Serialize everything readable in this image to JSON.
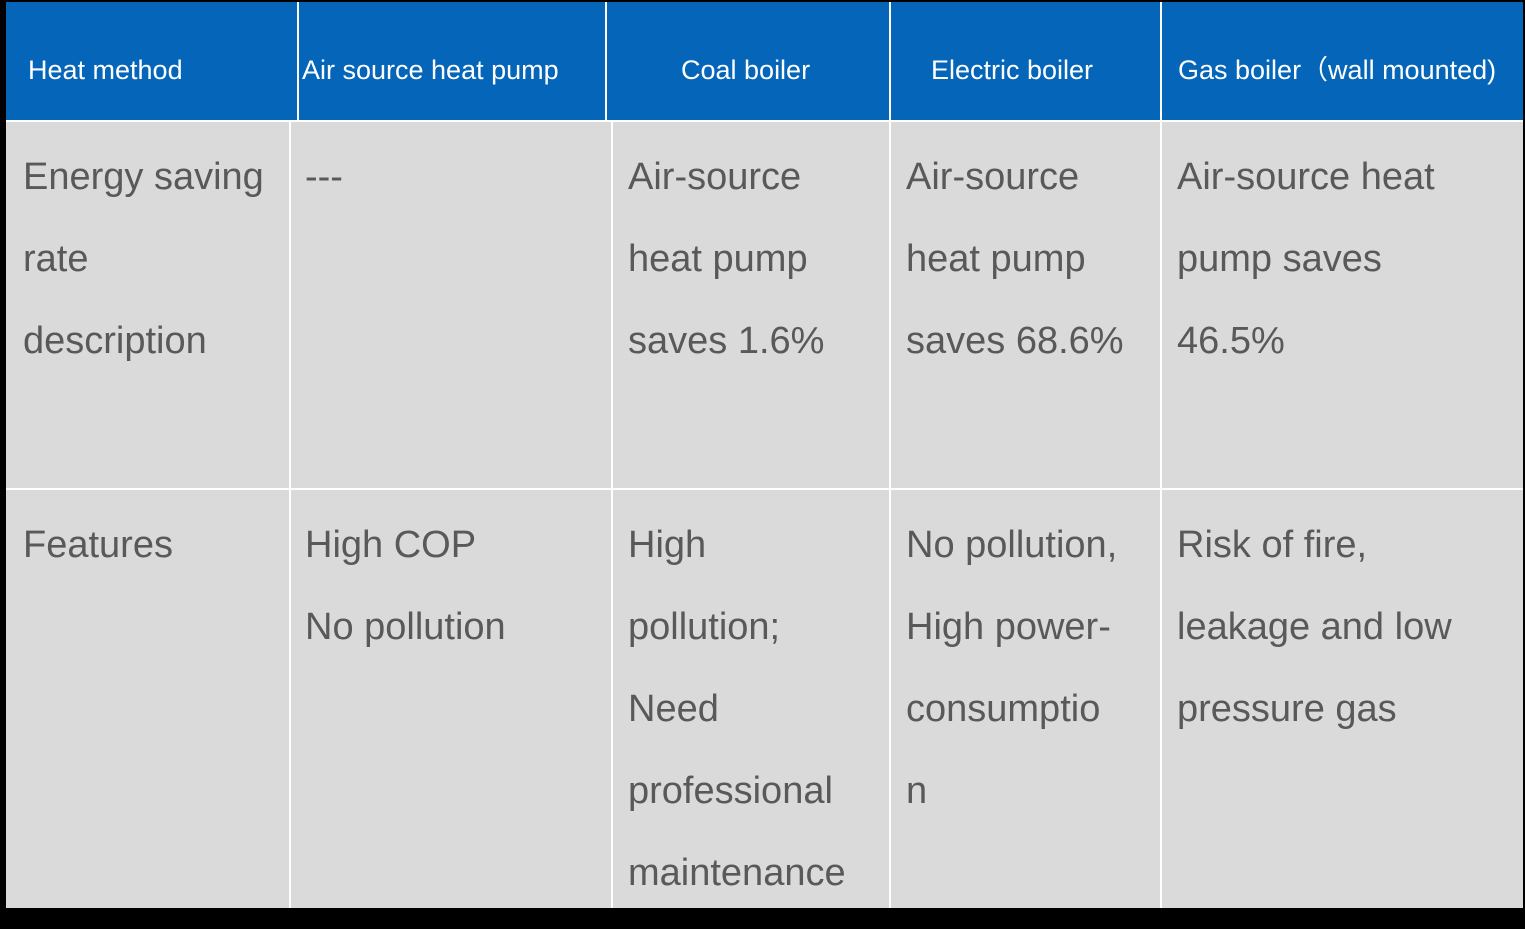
{
  "colors": {
    "header_bg": "#0565b8",
    "header_text": "#ffffff",
    "body_bg": "#dadada",
    "body_text": "#595959",
    "grid": "#ffffff"
  },
  "table": {
    "headers": {
      "method": "Heat method",
      "air": "Air source heat pump",
      "coal": "Coal boiler",
      "electric": "Electric boiler",
      "gas": "Gas boiler（wall mounted)"
    },
    "rows": [
      {
        "label": "Energy saving\nrate\ndescription",
        "air": "---",
        "coal": "Air-source\nheat pump\nsaves 1.6%",
        "electric": "Air-source\nheat pump\nsaves 68.6%",
        "gas": "Air-source heat\npump saves\n46.5%"
      },
      {
        "label": "Features",
        "air": "High COP\nNo pollution",
        "coal": "High\npollution;\nNeed\nprofessional\nmaintenance",
        "electric": "No pollution,\nHigh power-\nconsumptio\nn",
        "gas": "Risk of fire,\nleakage and low\npressure gas"
      }
    ]
  }
}
